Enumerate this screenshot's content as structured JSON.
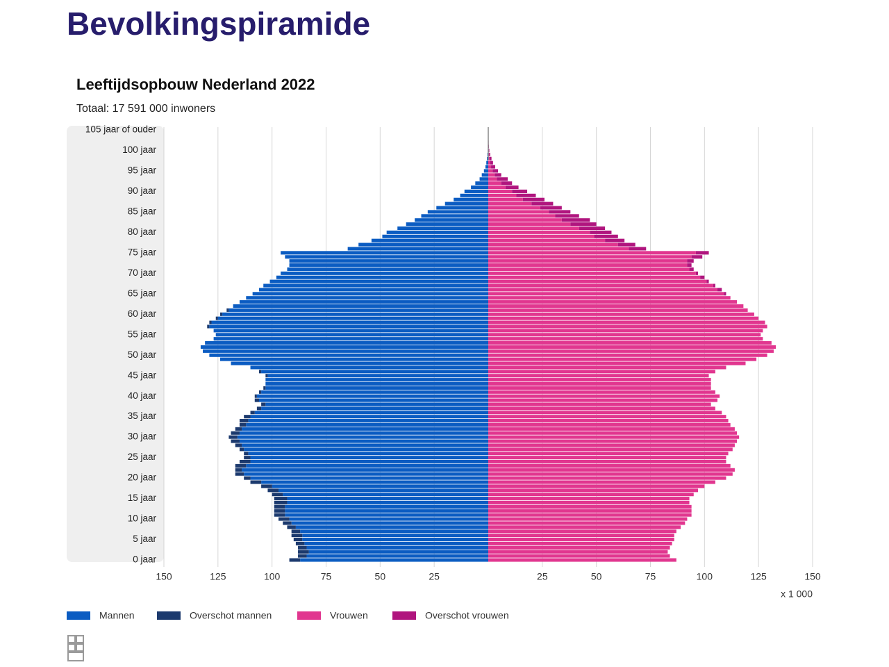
{
  "heading": "Bevolkingspiramide",
  "chart_data": {
    "type": "population-pyramid",
    "title": "Leeftijdsopbouw Nederland 2022",
    "subtitle": "Totaal: 17 591 000 inwoners",
    "x_unit_label": "x 1 000",
    "xlim": [
      0,
      150
    ],
    "xticks": [
      25,
      50,
      75,
      100,
      125,
      150
    ],
    "grid": true,
    "categories": [
      "0 jaar",
      null,
      null,
      null,
      null,
      "5 jaar",
      null,
      null,
      null,
      null,
      "10 jaar",
      null,
      null,
      null,
      null,
      "15 jaar",
      null,
      null,
      null,
      null,
      "20 jaar",
      null,
      null,
      null,
      null,
      "25 jaar",
      null,
      null,
      null,
      null,
      "30 jaar",
      null,
      null,
      null,
      null,
      "35 jaar",
      null,
      null,
      null,
      null,
      "40 jaar",
      null,
      null,
      null,
      null,
      "45 jaar",
      null,
      null,
      null,
      null,
      "50 jaar",
      null,
      null,
      null,
      null,
      "55 jaar",
      null,
      null,
      null,
      null,
      "60 jaar",
      null,
      null,
      null,
      null,
      "65 jaar",
      null,
      null,
      null,
      null,
      "70 jaar",
      null,
      null,
      null,
      null,
      "75 jaar",
      null,
      null,
      null,
      null,
      "80 jaar",
      null,
      null,
      null,
      null,
      "85 jaar",
      null,
      null,
      null,
      null,
      "90 jaar",
      null,
      null,
      null,
      null,
      "95 jaar",
      null,
      null,
      null,
      null,
      "100 jaar",
      null,
      null,
      null,
      null,
      "105 jaar of ouder"
    ],
    "series": [
      {
        "name": "Mannen",
        "color": "#0b5cc2",
        "values": [
          87,
          84,
          83,
          84,
          85,
          86,
          86,
          87,
          89,
          91,
          92,
          94,
          94,
          94,
          93,
          93,
          95,
          97,
          100,
          105,
          110,
          113,
          114,
          112,
          110,
          110,
          111,
          113,
          114,
          115,
          116,
          115,
          114,
          112,
          111,
          110,
          108,
          105,
          103,
          106,
          107,
          105,
          103,
          103,
          103,
          102,
          105,
          110,
          119,
          124,
          129,
          132,
          133,
          131,
          127,
          126,
          127,
          129,
          128,
          125,
          123,
          120,
          118,
          115,
          112,
          109,
          106,
          104,
          101,
          98,
          96,
          93,
          92,
          92,
          94,
          96,
          65,
          60,
          54,
          49,
          47,
          42,
          38,
          34,
          31,
          28,
          24,
          20,
          16,
          13,
          11,
          8,
          6,
          4,
          3,
          2,
          1.3,
          0.9,
          0.6,
          0.4,
          0.2,
          0.1,
          0.05,
          0,
          0,
          0
        ]
      },
      {
        "name": "Overschot mannen",
        "color": "#1c3a6e",
        "values": [
          5,
          4,
          5,
          4,
          4,
          4,
          5,
          4,
          4,
          4,
          5,
          5,
          5,
          5,
          6,
          6,
          5,
          5,
          5,
          5,
          3,
          4,
          3,
          5,
          5,
          3,
          2,
          2,
          3,
          4,
          4,
          4,
          3,
          3,
          4,
          3,
          2,
          2,
          2,
          2,
          1,
          1,
          1,
          0,
          0,
          1,
          1,
          0,
          0,
          0,
          0,
          0,
          0,
          0,
          0,
          0,
          0,
          1,
          1,
          1,
          1,
          1,
          0,
          0,
          0,
          0,
          0,
          0,
          0,
          0,
          0,
          0,
          0,
          0,
          0,
          0,
          0,
          0,
          0,
          0,
          0,
          0,
          0,
          0,
          0,
          0,
          0,
          0,
          0,
          0,
          0,
          0,
          0,
          0,
          0,
          0,
          0,
          0,
          0,
          0,
          0,
          0,
          0,
          0,
          0,
          0
        ]
      },
      {
        "name": "Vrouwen",
        "color": "#e1368f",
        "values": [
          87,
          84,
          83,
          84,
          85,
          86,
          86,
          87,
          89,
          91,
          92,
          94,
          94,
          94,
          93,
          93,
          95,
          97,
          100,
          105,
          110,
          113,
          114,
          112,
          110,
          110,
          111,
          113,
          114,
          115,
          116,
          115,
          114,
          112,
          111,
          110,
          108,
          105,
          103,
          106,
          107,
          105,
          103,
          103,
          103,
          102,
          105,
          110,
          119,
          124,
          129,
          132,
          133,
          131,
          127,
          126,
          127,
          129,
          128,
          125,
          123,
          120,
          118,
          115,
          112,
          109,
          106,
          104,
          101,
          98,
          96,
          93,
          92,
          92,
          94,
          96,
          65,
          60,
          54,
          49,
          47,
          42,
          38,
          34,
          31,
          28,
          24,
          20,
          16,
          13,
          11,
          8,
          6,
          4,
          3,
          2,
          1.3,
          0.9,
          0.6,
          0.4,
          0.2,
          0.1,
          0.05,
          0,
          0,
          0
        ]
      },
      {
        "name": "Overschot vrouwen",
        "color": "#b0157e",
        "values": [
          0,
          0,
          0,
          0,
          0,
          0,
          0,
          0,
          0,
          0,
          0,
          0,
          0,
          0,
          0,
          0,
          0,
          0,
          0,
          0,
          0,
          0,
          0,
          0,
          0,
          0,
          0,
          0,
          0,
          0,
          0,
          0,
          0,
          0,
          0,
          0,
          0,
          0,
          0,
          0,
          0,
          0,
          0,
          0,
          0,
          0,
          0,
          0,
          0,
          0,
          0,
          0,
          0,
          0,
          0,
          0,
          0,
          0,
          0,
          0,
          0,
          0,
          0,
          0,
          0,
          1,
          2,
          1,
          1,
          2,
          1,
          2,
          2,
          3,
          5,
          6,
          8,
          8,
          9,
          11,
          10,
          12,
          12,
          13,
          11,
          10,
          10,
          10,
          10,
          9,
          7,
          6,
          5,
          5,
          3,
          2.5,
          1.9,
          1.3,
          0.9,
          0.5,
          0.3,
          0.2,
          0.15,
          0.1,
          0.05,
          0.05
        ]
      }
    ]
  }
}
